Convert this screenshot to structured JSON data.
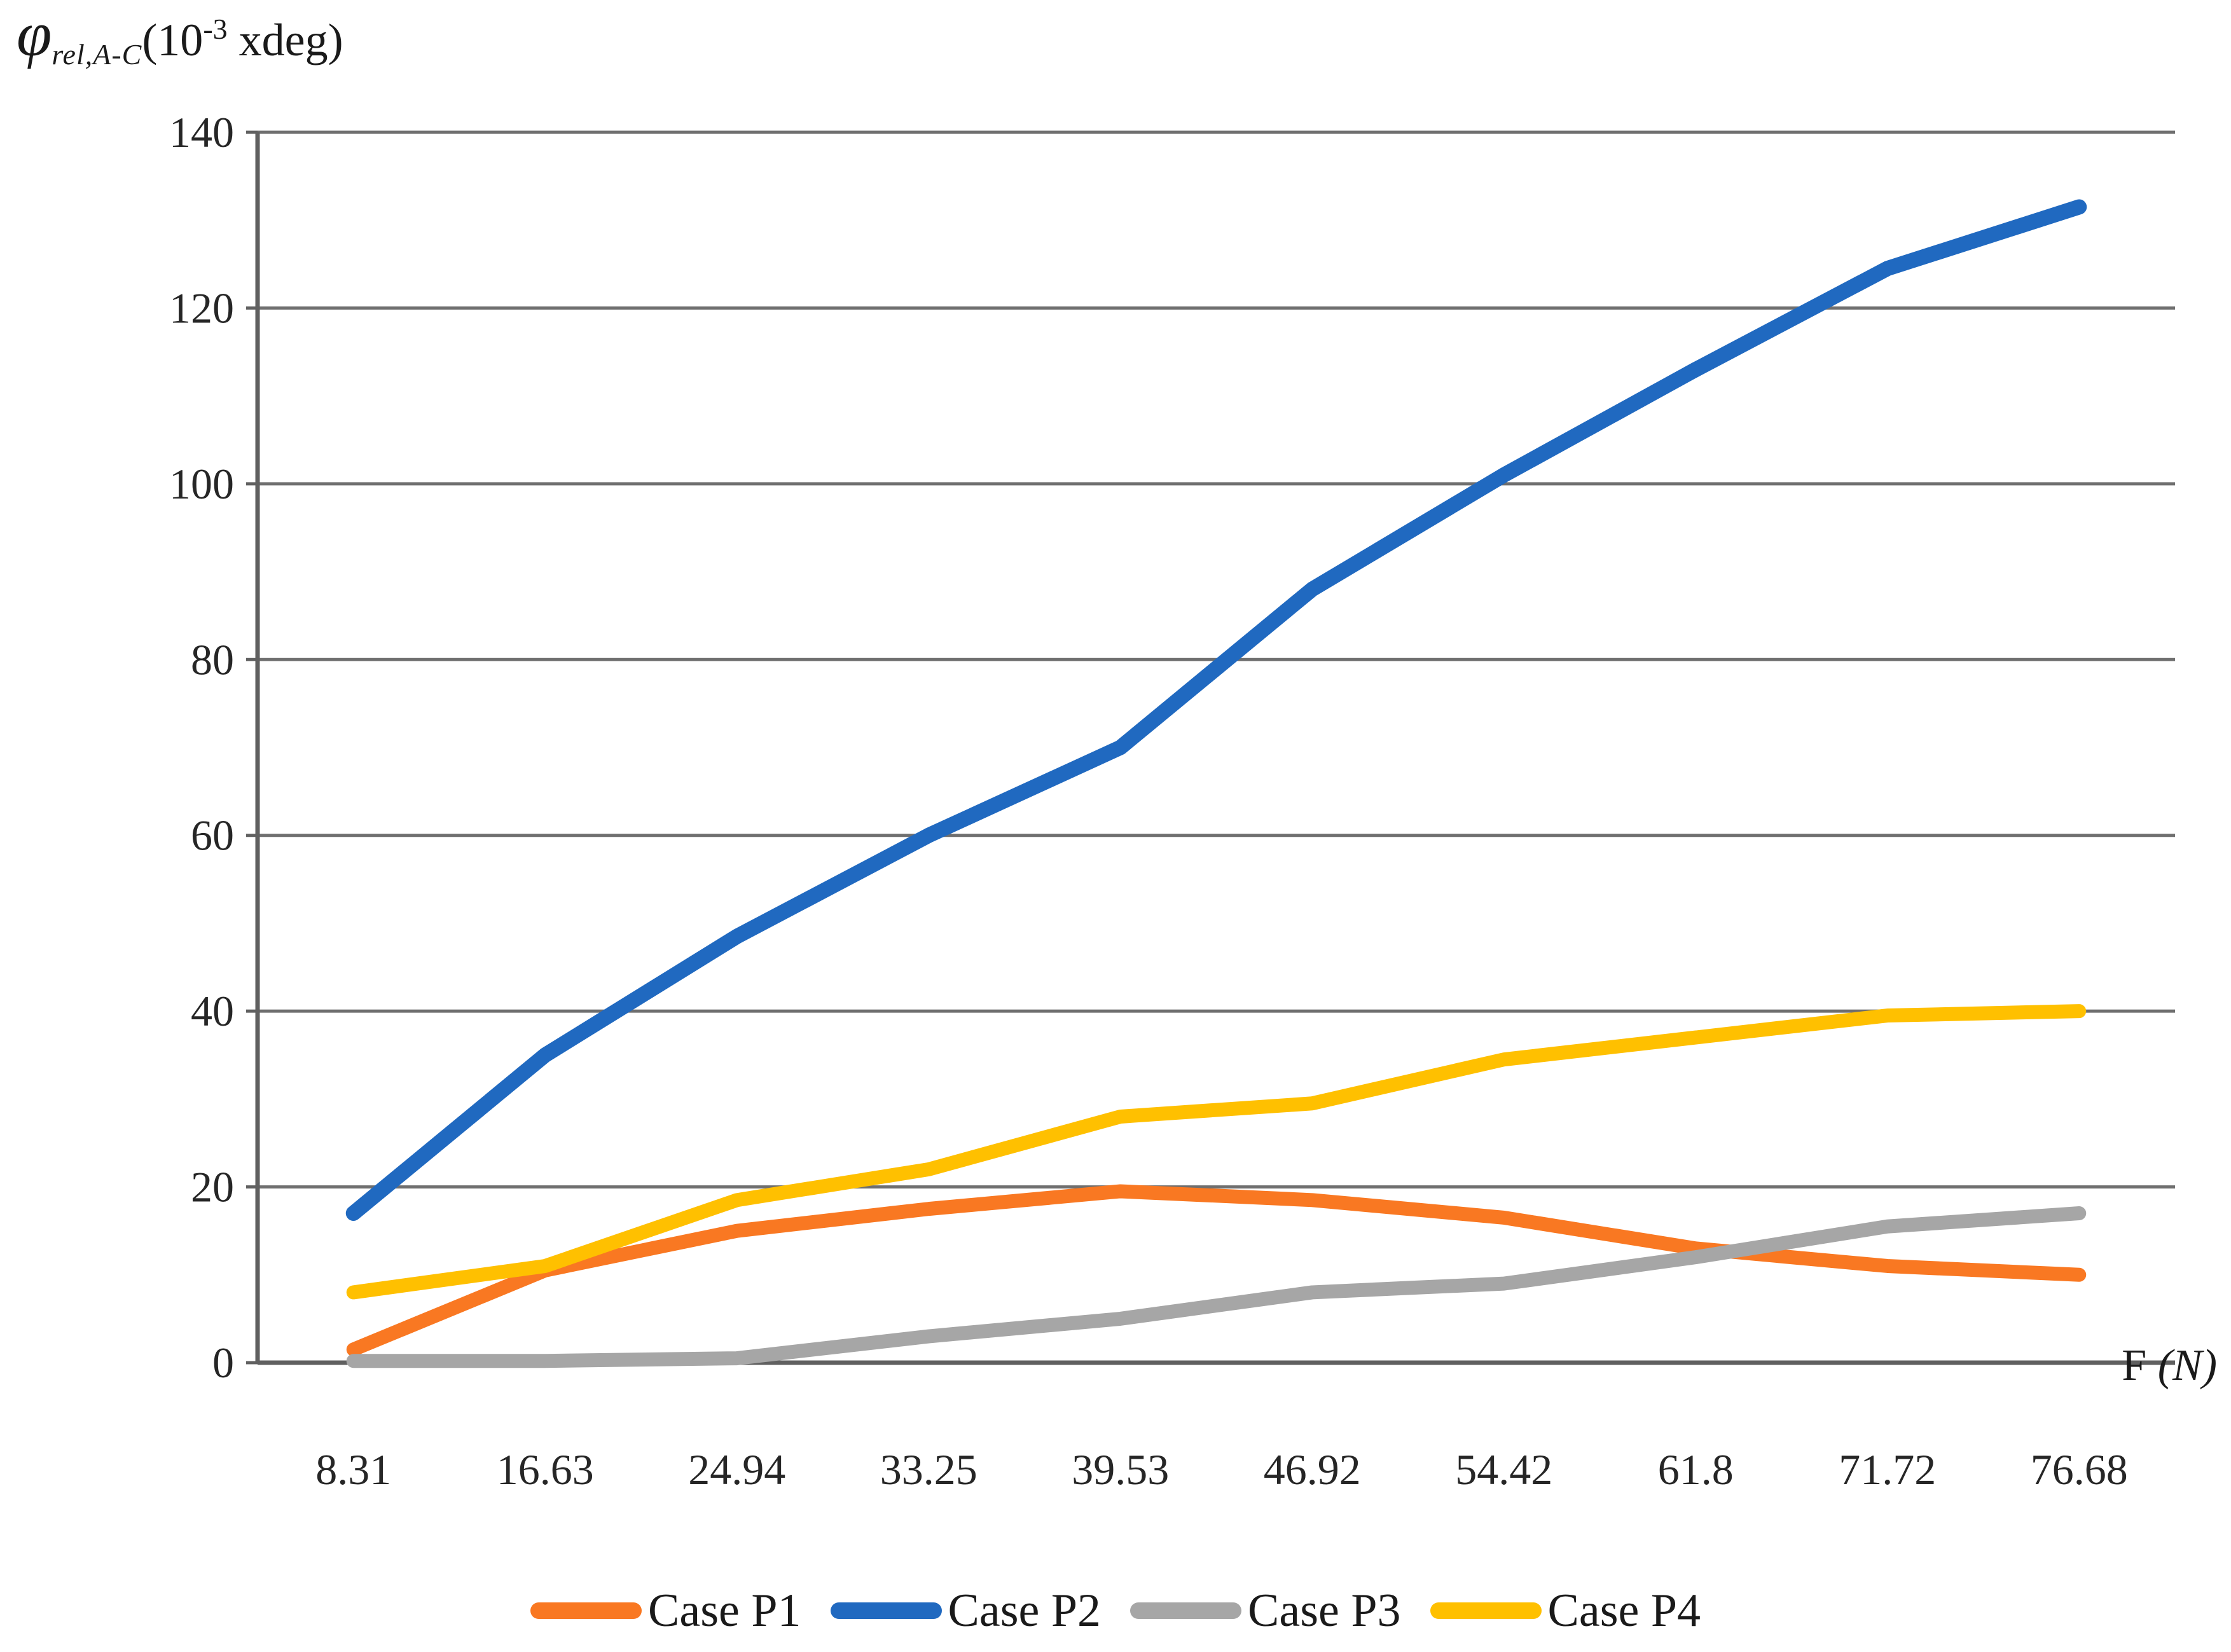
{
  "title": {
    "symbol": "φ",
    "subscript": "rel,A-C",
    "unit_open": "(10",
    "unit_exponent": "-3",
    "unit_close": " xdeg)"
  },
  "x_axis_title": {
    "text": "F ",
    "unit": "(N)"
  },
  "chart_data": {
    "type": "line",
    "title": "φ rel,A-C (10^-3 xdeg)",
    "xlabel": "F (N)",
    "ylabel": "φ rel,A-C (10^-3 xdeg)",
    "categories": [
      "8.31",
      "16.63",
      "24.94",
      "33.25",
      "39.53",
      "46.92",
      "54.42",
      "61.8",
      "71.72",
      "76.68"
    ],
    "y_ticks": [
      "0",
      "20",
      "40",
      "60",
      "80",
      "100",
      "120",
      "140"
    ],
    "ylim": [
      0,
      140
    ],
    "grid": true,
    "legend_position": "bottom",
    "axis_color": "#606060",
    "grid_color": "#6F6F6F",
    "series": [
      {
        "name": "Case P1",
        "color": "#F97822",
        "values": [
          1.5,
          10.5,
          15,
          17.5,
          19.5,
          18.5,
          16.5,
          13,
          11,
          10
        ]
      },
      {
        "name": "Case P2",
        "color": "#2069C0",
        "values": [
          17,
          35,
          48.5,
          60,
          70,
          88,
          101,
          113,
          124.5,
          131.5
        ]
      },
      {
        "name": "Case P3",
        "color": "#A6A6A6",
        "values": [
          0.2,
          0.2,
          0.5,
          3,
          5,
          8,
          9,
          12,
          15.5,
          17
        ]
      },
      {
        "name": "Case P4",
        "color": "#FFC000",
        "values": [
          8,
          11,
          18.5,
          22,
          28,
          29.5,
          34.5,
          37,
          39.5,
          40
        ]
      }
    ]
  }
}
